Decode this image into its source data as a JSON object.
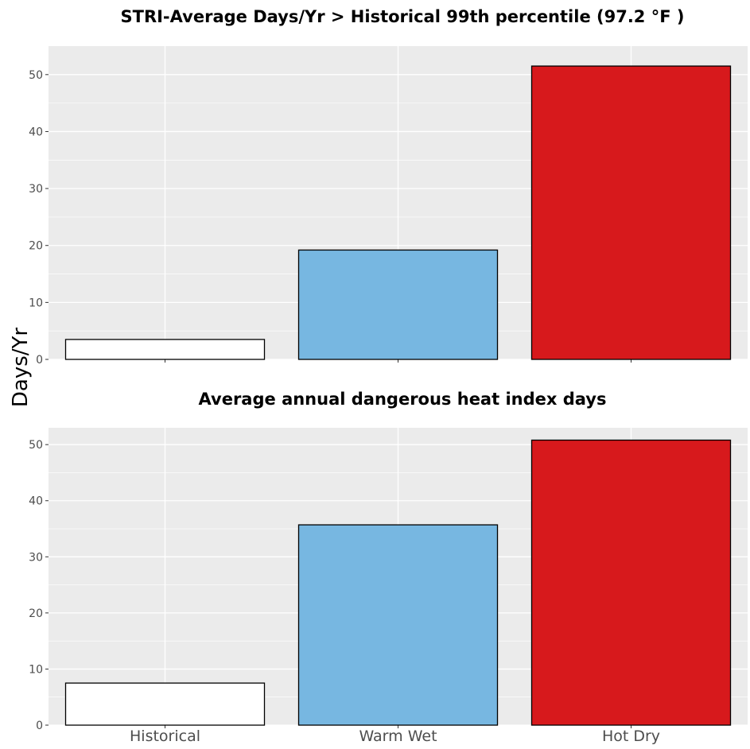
{
  "y_axis_label": "Days/Yr",
  "colors": {
    "panel_background": "#ebebeb",
    "grid": "#ffffff",
    "tick_text": "#4d4d4d",
    "bar_outline": "#000000"
  },
  "chart_data": [
    {
      "type": "bar",
      "title": "STRI-Average Days/Yr > Historical 99th percentile (97.2 °F )",
      "categories": [
        "Historical",
        "Warm Wet",
        "Hot Dry"
      ],
      "values": [
        3.5,
        19.2,
        51.5
      ],
      "colors": [
        "#ffffff",
        "#77b7e1",
        "#d7191c"
      ],
      "ylim": [
        0,
        55
      ],
      "yticks": [
        0,
        10,
        20,
        30,
        40,
        50
      ],
      "show_category_labels": false,
      "grid": true
    },
    {
      "type": "bar",
      "title": "Average annual dangerous heat index days",
      "categories": [
        "Historical",
        "Warm Wet",
        "Hot Dry"
      ],
      "values": [
        7.5,
        35.7,
        50.8
      ],
      "colors": [
        "#ffffff",
        "#77b7e1",
        "#d7191c"
      ],
      "ylim": [
        0,
        53
      ],
      "yticks": [
        0,
        10,
        20,
        30,
        40,
        50
      ],
      "show_category_labels": true,
      "grid": true
    }
  ]
}
